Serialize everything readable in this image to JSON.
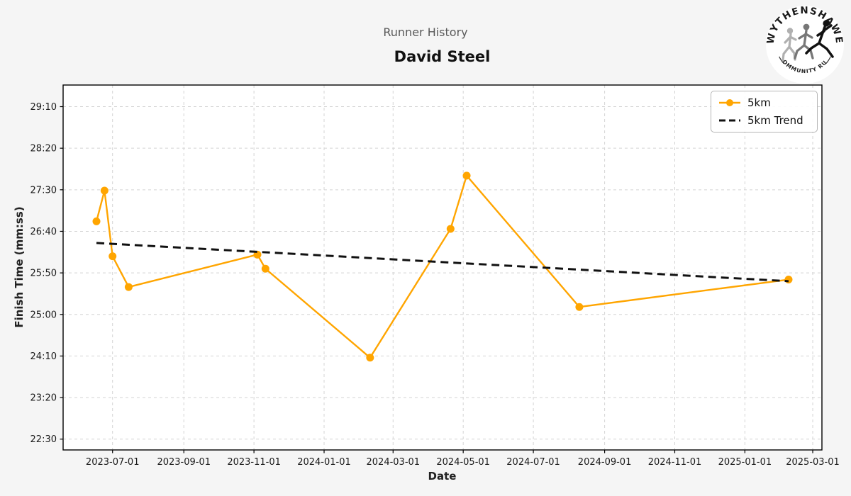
{
  "header": {
    "subtitle": "Runner History",
    "title": "David Steel"
  },
  "logo": {
    "top_text": "WYTHENSHAWE",
    "bottom_text": "COMMUNITY RUN"
  },
  "chart_data": {
    "type": "line",
    "title": "David Steel",
    "subtitle": "Runner History",
    "xlabel": "Date",
    "ylabel": "Finish Time (mm:ss)",
    "grid": true,
    "legend_position": "upper right",
    "x_ticks": [
      "2023-07-01",
      "2023-09-01",
      "2023-11-01",
      "2024-01-01",
      "2024-03-01",
      "2024-05-01",
      "2024-07-01",
      "2024-09-01",
      "2024-11-01",
      "2025-01-01",
      "2025-03-01"
    ],
    "y_ticks": [
      "22:30",
      "23:20",
      "24:10",
      "25:00",
      "25:50",
      "26:40",
      "27:30",
      "28:20",
      "29:10"
    ],
    "xlim": [
      "2023-05-19",
      "2025-03-09"
    ],
    "ylim": [
      "22:17",
      "29:36"
    ],
    "series": [
      {
        "name": "5km",
        "style": "solid-with-markers",
        "color": "#FFA500",
        "points": [
          {
            "date": "2023-06-17",
            "time": "26:52"
          },
          {
            "date": "2023-06-24",
            "time": "27:29"
          },
          {
            "date": "2023-07-01",
            "time": "26:10"
          },
          {
            "date": "2023-07-15",
            "time": "25:33"
          },
          {
            "date": "2023-11-04",
            "time": "26:12"
          },
          {
            "date": "2023-11-11",
            "time": "25:55"
          },
          {
            "date": "2024-02-10",
            "time": "24:08"
          },
          {
            "date": "2024-04-20",
            "time": "26:43"
          },
          {
            "date": "2024-05-04",
            "time": "27:47"
          },
          {
            "date": "2024-08-10",
            "time": "25:09"
          },
          {
            "date": "2025-02-08",
            "time": "25:42"
          }
        ]
      },
      {
        "name": "5km Trend",
        "style": "dashed",
        "color": "#111111",
        "points": [
          {
            "date": "2023-06-17",
            "time": "26:26"
          },
          {
            "date": "2025-02-08",
            "time": "25:40"
          }
        ]
      }
    ]
  }
}
